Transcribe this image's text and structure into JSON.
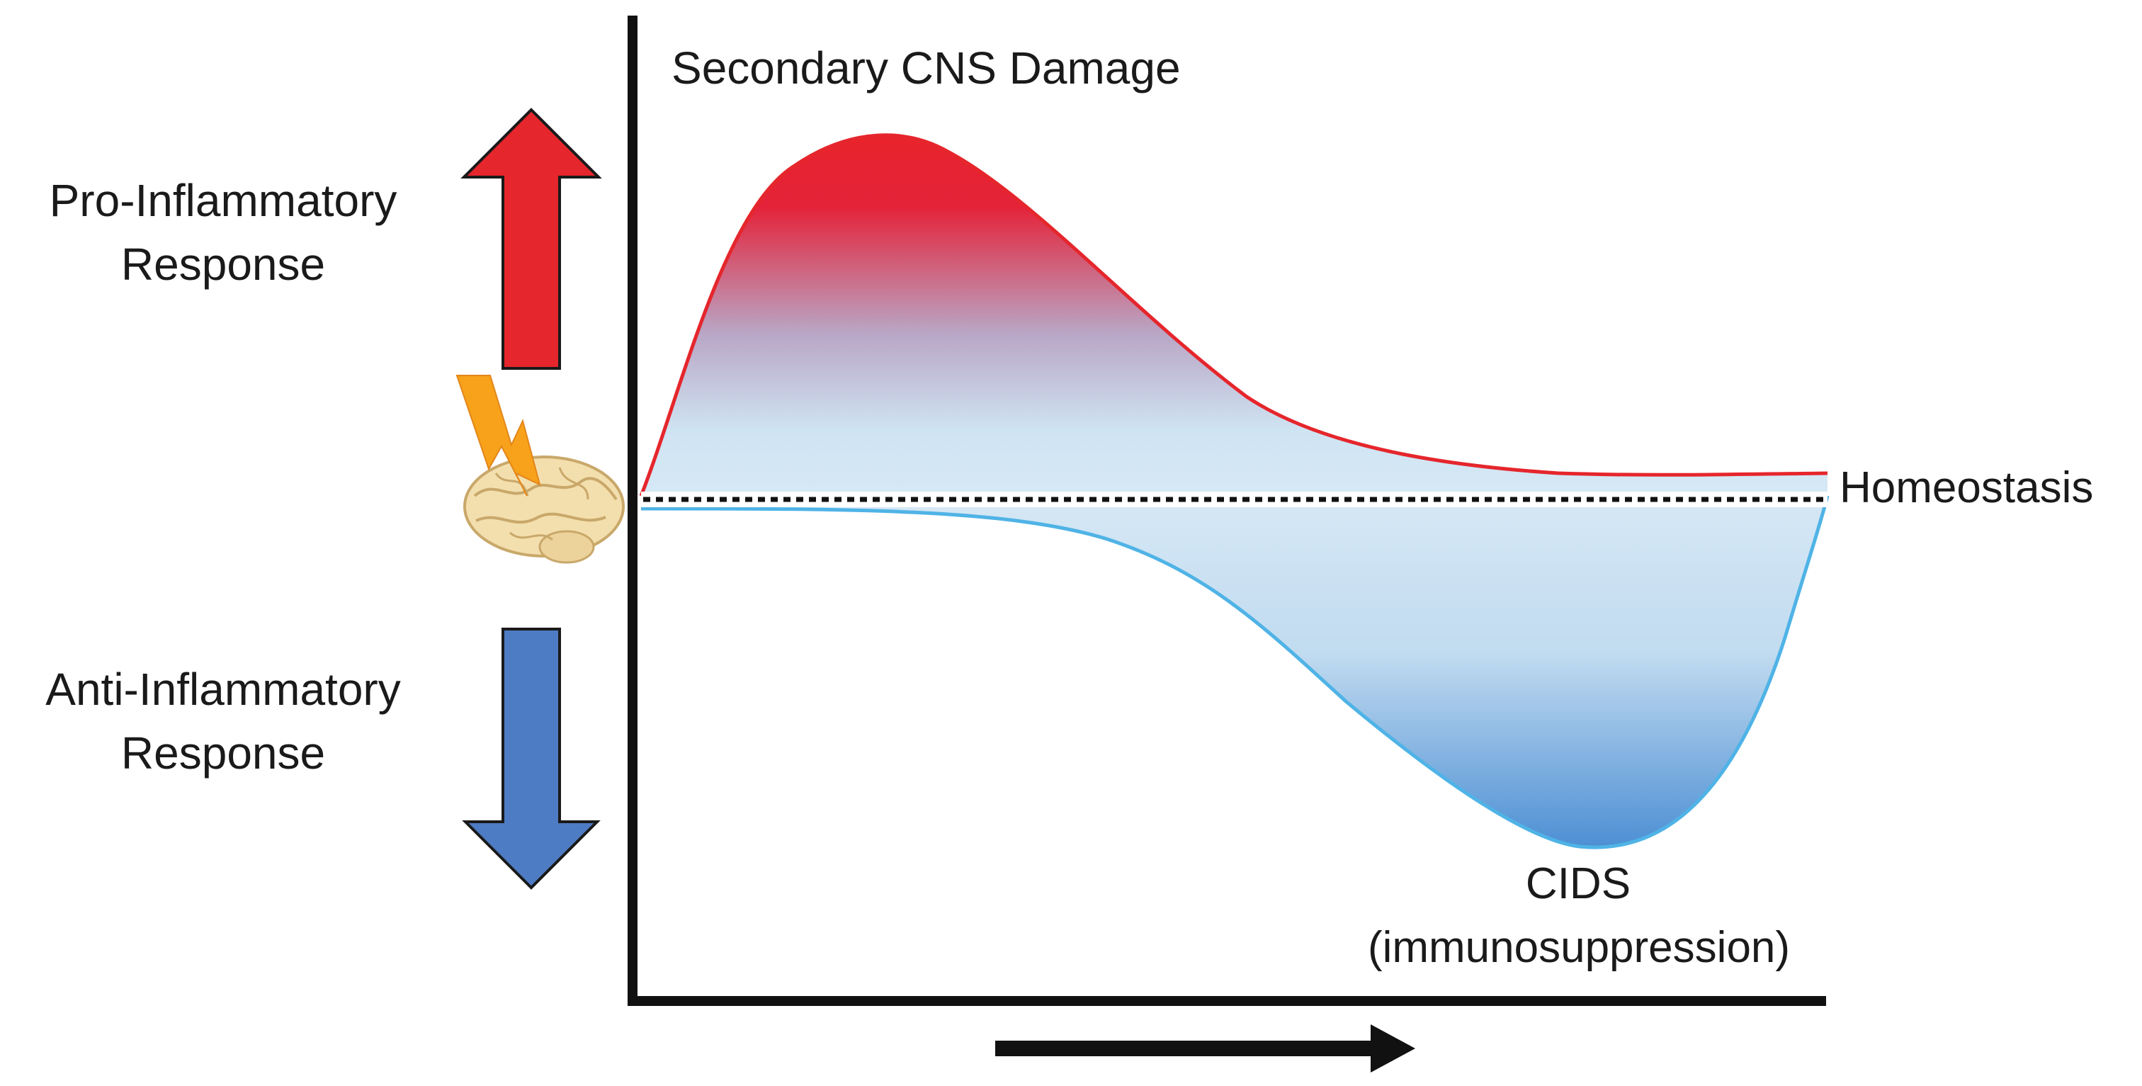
{
  "figure": {
    "title": "Secondary CNS Damage",
    "pro_label_line1": "Pro-Inflammatory",
    "pro_label_line2": "Response",
    "anti_label_line1": "Anti-Inflammatory",
    "anti_label_line2": "Response",
    "baseline_label": "Homeostasis",
    "trough_label_line1": "CIDS",
    "trough_label_line2": "(immunosuppression)"
  },
  "icons": {
    "injury": "brain-lightning-icon",
    "up": "up-arrow-icon",
    "down": "down-arrow-icon",
    "time": "right-arrow-icon"
  },
  "colors": {
    "pro_arrow": "#e5262c",
    "anti_arrow": "#4e7cc4",
    "pro_curve": "#e5262c",
    "anti_curve": "#4fb3e6",
    "axis": "#111111"
  }
}
